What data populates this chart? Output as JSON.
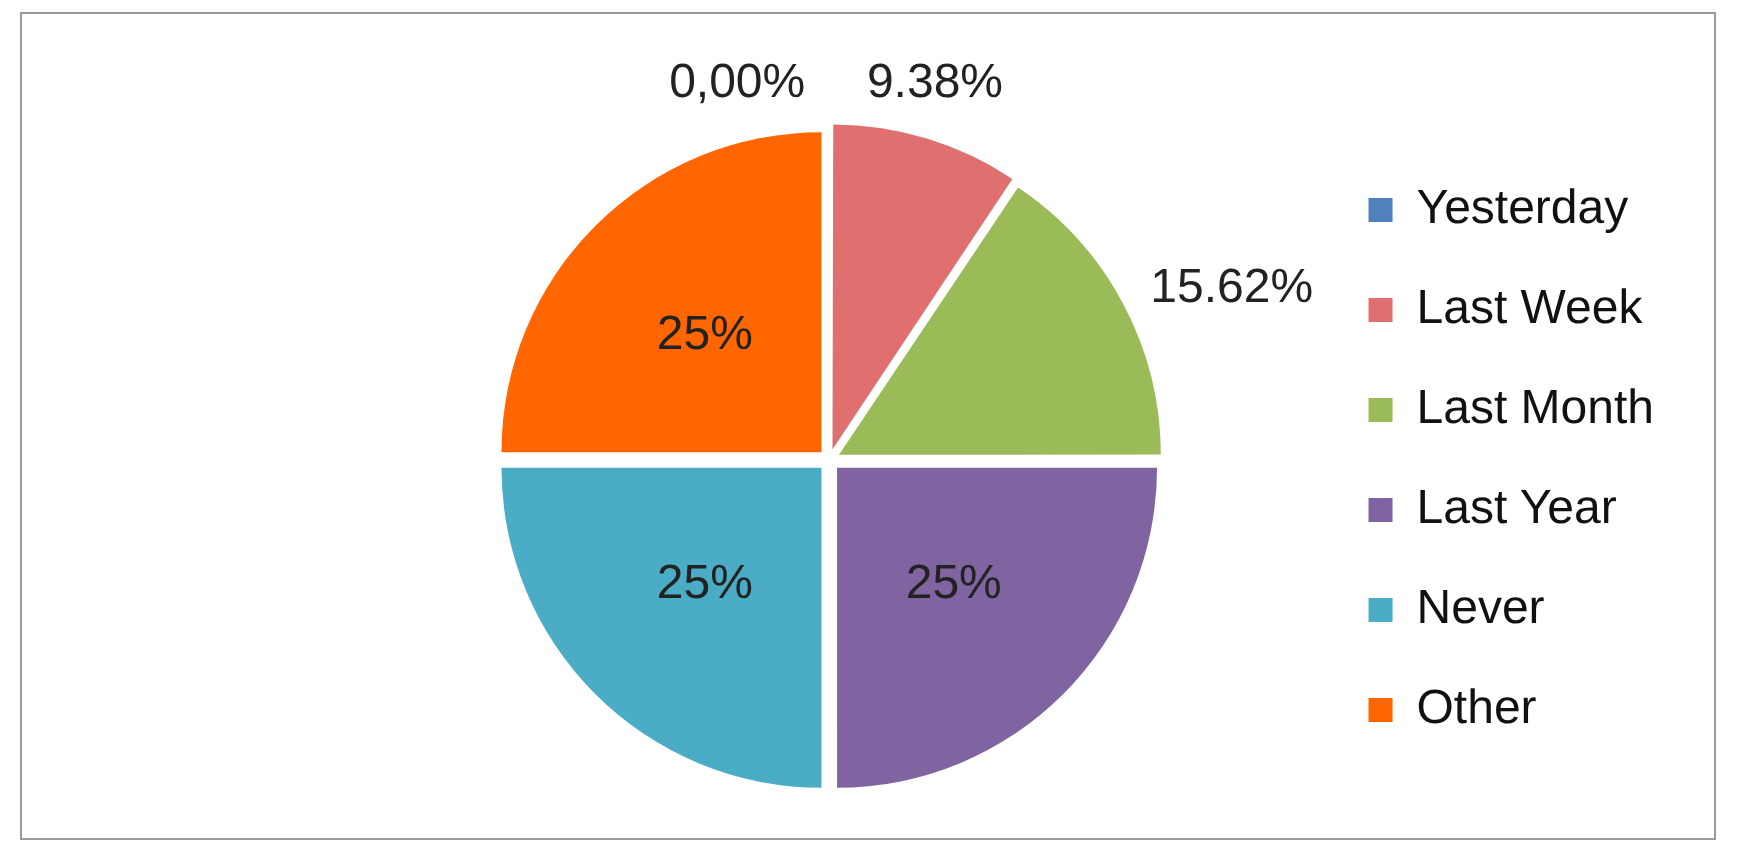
{
  "chart_data": {
    "type": "pie",
    "categories": [
      "Yesterday",
      "Last Week",
      "Last Month",
      "Last Year",
      "Never",
      "Other"
    ],
    "values": [
      0,
      9.38,
      15.62,
      25,
      25,
      25
    ],
    "colors": [
      "#4f81bd",
      "#e07070",
      "#9bbb59",
      "#8064a2",
      "#4bacc6",
      "#ff6600"
    ],
    "value_labels": [
      "0,00%",
      "9.38%",
      "15.62%",
      "25%",
      "25%",
      "25%"
    ],
    "legend": "right"
  }
}
